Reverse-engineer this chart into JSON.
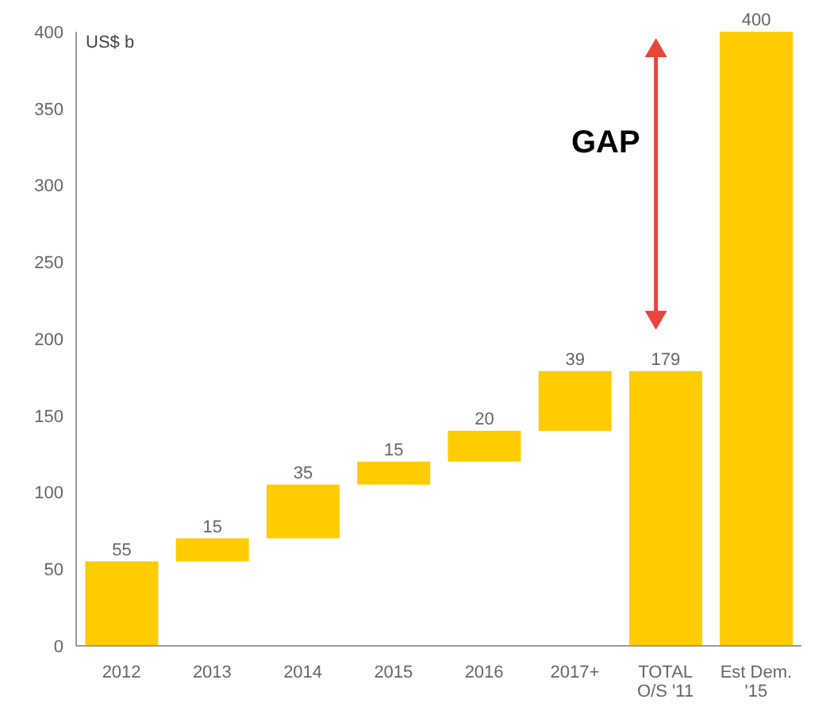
{
  "chart_data": {
    "type": "bar",
    "ylabel": "US$ b",
    "categories": [
      "2012",
      "2013",
      "2014",
      "2015",
      "2016",
      "2017+",
      "TOTAL\nO/S '11",
      "Est Dem.\n'15"
    ],
    "values": [
      55,
      15,
      35,
      15,
      20,
      39,
      179,
      400
    ],
    "base": [
      0,
      55,
      70,
      105,
      120,
      140,
      0,
      0
    ],
    "color": "#ffcc00",
    "ylim": [
      0,
      400
    ],
    "yticks": [
      0,
      50,
      100,
      150,
      200,
      250,
      300,
      350,
      400
    ],
    "data_labels": true,
    "annotations": [
      "GAP"
    ]
  }
}
